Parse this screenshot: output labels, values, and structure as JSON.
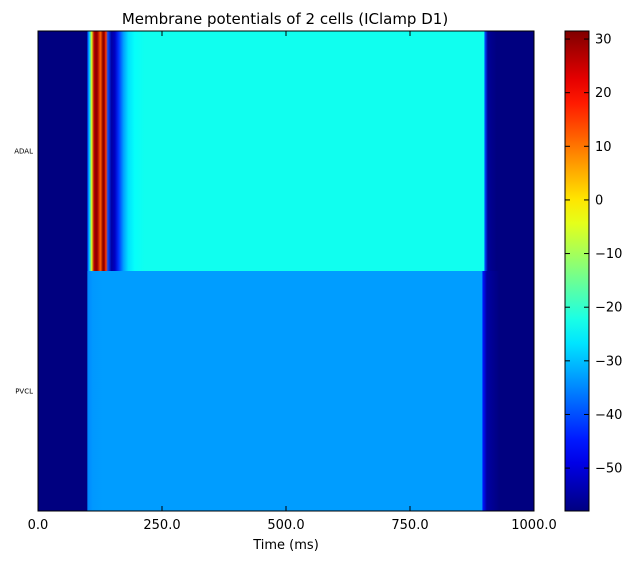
{
  "chart_data": {
    "type": "heatmap",
    "title": "Membrane potentials of 2 cells (IClamp D1)",
    "xlabel": "Time (ms)",
    "ylabel": "",
    "xlim": [
      0,
      1000
    ],
    "x_ticks": [
      0,
      250,
      500,
      750,
      1000
    ],
    "x_tick_labels": [
      "0.0",
      "250.0",
      "500.0",
      "750.0",
      "1000.0"
    ],
    "rows": [
      "ADAL",
      "PVCL"
    ],
    "colormap": "jet",
    "colorbar": {
      "range": [
        -58,
        31.5
      ],
      "ticks": [
        -50,
        -40,
        -30,
        -20,
        -10,
        0,
        10,
        20,
        30
      ],
      "tick_labels": [
        "−50",
        "−40",
        "−30",
        "−20",
        "−10",
        "0",
        "10",
        "20",
        "30"
      ]
    },
    "series": [
      {
        "name": "ADAL",
        "points": [
          [
            0,
            -58
          ],
          [
            99,
            -58
          ],
          [
            100,
            -40
          ],
          [
            104,
            -28
          ],
          [
            108,
            -5
          ],
          [
            113,
            26
          ],
          [
            117,
            31
          ],
          [
            120,
            28
          ],
          [
            126,
            12
          ],
          [
            131,
            31
          ],
          [
            134,
            28
          ],
          [
            137,
            15
          ],
          [
            141,
            -40
          ],
          [
            148,
            -55
          ],
          [
            155,
            -52
          ],
          [
            163,
            -42
          ],
          [
            172,
            -33
          ],
          [
            182,
            -27
          ],
          [
            195,
            -24
          ],
          [
            215,
            -23
          ],
          [
            500,
            -23
          ],
          [
            899,
            -23
          ],
          [
            901,
            -40
          ],
          [
            907,
            -56
          ],
          [
            925,
            -58
          ],
          [
            1000,
            -58
          ]
        ]
      },
      {
        "name": "PVCL",
        "points": [
          [
            0,
            -58
          ],
          [
            99,
            -58
          ],
          [
            100,
            -35
          ],
          [
            110,
            -33.5
          ],
          [
            130,
            -33
          ],
          [
            200,
            -33
          ],
          [
            500,
            -33
          ],
          [
            895,
            -33
          ],
          [
            897,
            -45
          ],
          [
            905,
            -55
          ],
          [
            930,
            -58
          ],
          [
            1000,
            -58
          ]
        ]
      }
    ]
  }
}
